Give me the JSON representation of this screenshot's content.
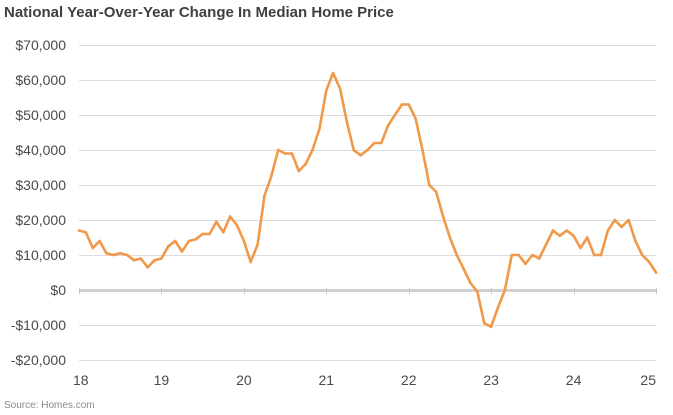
{
  "title": "National Year-Over-Year Change In Median Home Price",
  "source": "Source: Homes.com",
  "colors": {
    "line": "#F0994A",
    "grid": "#dcdcdc",
    "zero_line": "#d0d0d0",
    "text": "#4a4a4a"
  },
  "chart_data": {
    "type": "line",
    "title": "National Year-Over-Year Change In Median Home Price",
    "xlabel": "",
    "ylabel": "",
    "xlim": [
      18,
      25
    ],
    "ylim": [
      -20000,
      70000
    ],
    "grid": true,
    "legend": "none",
    "x_ticks": [
      18,
      19,
      20,
      21,
      22,
      23,
      24,
      25
    ],
    "x_tick_labels": [
      "18",
      "19",
      "20",
      "21",
      "22",
      "23",
      "24",
      "25"
    ],
    "y_ticks": [
      70000,
      60000,
      50000,
      40000,
      30000,
      20000,
      10000,
      0,
      -10000,
      -20000
    ],
    "y_tick_labels": [
      "$70,000",
      "$60,000",
      "$50,000",
      "$40,000",
      "$30,000",
      "$20,000",
      "$10,000",
      "$0",
      "-$10,000",
      "-$20,000"
    ],
    "series": [
      {
        "color": "#F0994A",
        "x": [
          18.0,
          18.083,
          18.167,
          18.25,
          18.333,
          18.417,
          18.5,
          18.583,
          18.667,
          18.75,
          18.833,
          18.917,
          19.0,
          19.083,
          19.167,
          19.25,
          19.333,
          19.417,
          19.5,
          19.583,
          19.667,
          19.75,
          19.833,
          19.917,
          20.0,
          20.083,
          20.167,
          20.25,
          20.333,
          20.417,
          20.5,
          20.583,
          20.667,
          20.75,
          20.833,
          20.917,
          21.0,
          21.083,
          21.167,
          21.25,
          21.333,
          21.417,
          21.5,
          21.583,
          21.667,
          21.75,
          21.833,
          21.917,
          22.0,
          22.083,
          22.167,
          22.25,
          22.333,
          22.417,
          22.5,
          22.583,
          22.667,
          22.75,
          22.833,
          22.917,
          23.0,
          23.083,
          23.167,
          23.25,
          23.333,
          23.417,
          23.5,
          23.583,
          23.667,
          23.75,
          23.833,
          23.917,
          24.0,
          24.083,
          24.167,
          24.25,
          24.333,
          24.417,
          24.5,
          24.583,
          24.667,
          24.75,
          24.833,
          24.917,
          25.0
        ],
        "y": [
          17000,
          16500,
          12000,
          14000,
          10500,
          10000,
          10500,
          10000,
          8500,
          9000,
          6500,
          8500,
          9000,
          12500,
          14000,
          11000,
          14000,
          14500,
          16000,
          16000,
          19500,
          16500,
          21000,
          18500,
          14000,
          8000,
          13000,
          27000,
          32500,
          40000,
          39000,
          39000,
          34000,
          36000,
          40000,
          46000,
          57000,
          62000,
          57500,
          48000,
          40000,
          38500,
          40000,
          42000,
          42000,
          47000,
          50000,
          53000,
          53000,
          49000,
          40000,
          30000,
          28000,
          21000,
          15000,
          10000,
          6000,
          2000,
          -500,
          -9500,
          -10500,
          -5000,
          0,
          10000,
          10000,
          7500,
          10000,
          9000,
          13000,
          17000,
          15500,
          17000,
          15500,
          12000,
          15000,
          10000,
          10000,
          17000,
          20000,
          18000,
          20000,
          14000,
          10000,
          8000,
          5000
        ]
      }
    ]
  }
}
